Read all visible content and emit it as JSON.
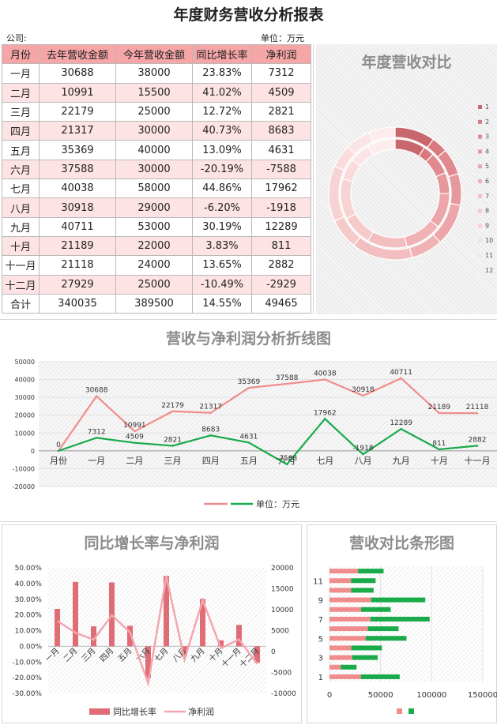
{
  "title": "年度财务营收分析报表",
  "meta": {
    "company_label": "公司:",
    "unit_label": "单位：万元"
  },
  "table": {
    "headers": [
      "月份",
      "去年营收金额",
      "今年营收金额",
      "同比增长率",
      "净利润"
    ],
    "rows": [
      [
        "一月",
        "30688",
        "38000",
        "23.83%",
        "7312"
      ],
      [
        "二月",
        "10991",
        "15500",
        "41.02%",
        "4509"
      ],
      [
        "三月",
        "22179",
        "25000",
        "12.72%",
        "2821"
      ],
      [
        "四月",
        "21317",
        "30000",
        "40.73%",
        "8683"
      ],
      [
        "五月",
        "35369",
        "40000",
        "13.09%",
        "4631"
      ],
      [
        "六月",
        "37588",
        "30000",
        "-20.19%",
        "-7588"
      ],
      [
        "七月",
        "40038",
        "58000",
        "44.86%",
        "17962"
      ],
      [
        "八月",
        "30918",
        "29000",
        "-6.20%",
        "-1918"
      ],
      [
        "九月",
        "40711",
        "53000",
        "30.19%",
        "12289"
      ],
      [
        "十月",
        "21189",
        "22000",
        "3.83%",
        "811"
      ],
      [
        "十一月",
        "21118",
        "24000",
        "13.65%",
        "2882"
      ],
      [
        "十二月",
        "27929",
        "25000",
        "-10.49%",
        "-2929"
      ]
    ],
    "total": [
      "合计",
      "340035",
      "389500",
      "14.55%",
      "49465"
    ]
  },
  "colors": {
    "header_bg": "#f6a6a6",
    "alt_row_bg": "#fde3e3",
    "pink_line": "#f08c8c",
    "green": "#19aa4a",
    "bar_red": "#e06c75",
    "bar_pink": "#f3a6ae"
  },
  "chart_data": [
    {
      "type": "pie",
      "title": "年度营收对比",
      "legend": [
        "1",
        "2",
        "3",
        "4",
        "5",
        "6",
        "7",
        "8",
        "9",
        "10",
        "11",
        "12"
      ],
      "legend_position": "right",
      "outer_ring": [
        38000,
        15500,
        25000,
        30000,
        40000,
        30000,
        58000,
        29000,
        53000,
        22000,
        24000,
        25000
      ],
      "inner_ring": [
        30688,
        10991,
        22179,
        21317,
        35369,
        37588,
        40038,
        30918,
        40711,
        21189,
        21118,
        27929
      ]
    },
    {
      "type": "line",
      "title": "营收与净利润分析折线图",
      "categories": [
        "月份",
        "一月",
        "二月",
        "三月",
        "四月",
        "五月",
        "六月",
        "七月",
        "八月",
        "九月",
        "十月",
        "十一月"
      ],
      "series": [
        {
          "values": [
            0,
            30688,
            10991,
            22179,
            21317,
            35369,
            37588,
            40038,
            30918,
            40711,
            21189,
            21118
          ],
          "labels": [
            "0",
            "30688",
            "10991",
            "22179",
            "21317",
            "35369",
            "37588",
            "40038",
            "30918",
            "40711",
            "21189",
            "21118"
          ],
          "color": "#f08c8c"
        },
        {
          "name": "单位：万元",
          "values": [
            0,
            7312,
            4509,
            2821,
            8683,
            4631,
            -7588,
            17962,
            -1918,
            12289,
            811,
            2882
          ],
          "labels": [
            "",
            "7312",
            "4509",
            "2821",
            "8683",
            "4631",
            "-7588",
            "17962",
            "-1918",
            "12289",
            "811",
            "2882"
          ],
          "color": "#19aa4a"
        }
      ],
      "yticks": [
        "50000",
        "40000",
        "30000",
        "20000",
        "10000",
        "0",
        "-10000",
        "-20000"
      ],
      "ylim": [
        -20000,
        50000
      ],
      "grid": true,
      "legend_position": "bottom"
    },
    {
      "type": "bar",
      "title": "同比增长率与净利润",
      "categories": [
        "一月",
        "二月",
        "三月",
        "四月",
        "五月",
        "六月",
        "七月",
        "八月",
        "九月",
        "十月",
        "十一月",
        "十二月"
      ],
      "bar_series": {
        "name": "同比增长率",
        "values": [
          23.83,
          41.02,
          12.72,
          40.73,
          13.09,
          -20.19,
          44.86,
          -6.2,
          30.19,
          3.83,
          13.65,
          -10.49
        ]
      },
      "line_series": {
        "name": "净利润",
        "values": [
          7312,
          4509,
          2821,
          8683,
          4631,
          -7588,
          17962,
          -1918,
          12289,
          811,
          2882,
          -2929
        ]
      },
      "y_left_ticks": [
        "50.00%",
        "40.00%",
        "30.00%",
        "20.00%",
        "10.00%",
        "0.00%",
        "-10.00%",
        "-20.00%",
        "-30.00%"
      ],
      "y_left_lim": [
        -30,
        50
      ],
      "y_right_ticks": [
        "20000",
        "15000",
        "10000",
        "5000",
        "0",
        "-5000",
        "-10000"
      ],
      "y_right_lim": [
        -10000,
        20000
      ],
      "legend_position": "bottom"
    },
    {
      "type": "bar",
      "orientation": "horizontal",
      "stacked": true,
      "title": "营收对比条形图",
      "categories": [
        "1",
        "2",
        "3",
        "4",
        "5",
        "6",
        "7",
        "8",
        "9",
        "10",
        "11",
        "12"
      ],
      "category_labels_shown": [
        "1",
        "3",
        "5",
        "7",
        "9",
        "11"
      ],
      "series": [
        {
          "values": [
            30688,
            10991,
            22179,
            21317,
            35369,
            37588,
            40038,
            30918,
            40711,
            21189,
            21118,
            27929
          ],
          "color": "#f08c8c"
        },
        {
          "values": [
            38000,
            15500,
            25000,
            30000,
            40000,
            30000,
            58000,
            29000,
            53000,
            22000,
            24000,
            25000
          ],
          "color": "#19aa4a"
        }
      ],
      "xticks": [
        "0",
        "50000",
        "100000",
        "150000"
      ],
      "xlim": [
        0,
        150000
      ],
      "legend_position": "bottom"
    }
  ]
}
